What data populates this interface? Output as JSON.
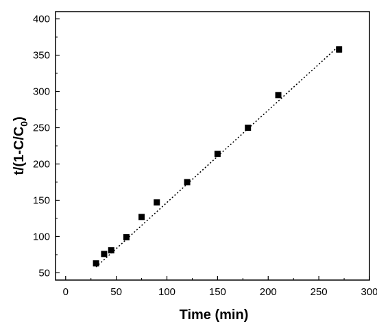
{
  "chart_data": {
    "type": "scatter",
    "title": "",
    "xlabel": "Time (min)",
    "ylabel": {
      "main": "t/(1-C/C",
      "subscript": "0",
      "suffix": ")"
    },
    "xlim": [
      -10,
      300
    ],
    "ylim": [
      40,
      410
    ],
    "xticks": [
      0,
      50,
      100,
      150,
      200,
      250,
      300
    ],
    "yticks": [
      50,
      100,
      150,
      200,
      250,
      300,
      350,
      400
    ],
    "grid": false,
    "legend": "none",
    "series": [
      {
        "marker": "square",
        "color": "#000000",
        "x": [
          30,
          38,
          45,
          60,
          75,
          90,
          120,
          150,
          180,
          210,
          270
        ],
        "y": [
          63,
          76,
          81,
          99,
          127,
          147,
          175,
          214,
          250,
          295,
          358
        ],
        "error": [
          0,
          0,
          0,
          0,
          0,
          0,
          0,
          0,
          0,
          0,
          4
        ]
      }
    ],
    "fit_line": {
      "style": "dotted",
      "color": "#000000",
      "x": [
        30,
        270
      ],
      "y": [
        58,
        363
      ]
    }
  }
}
